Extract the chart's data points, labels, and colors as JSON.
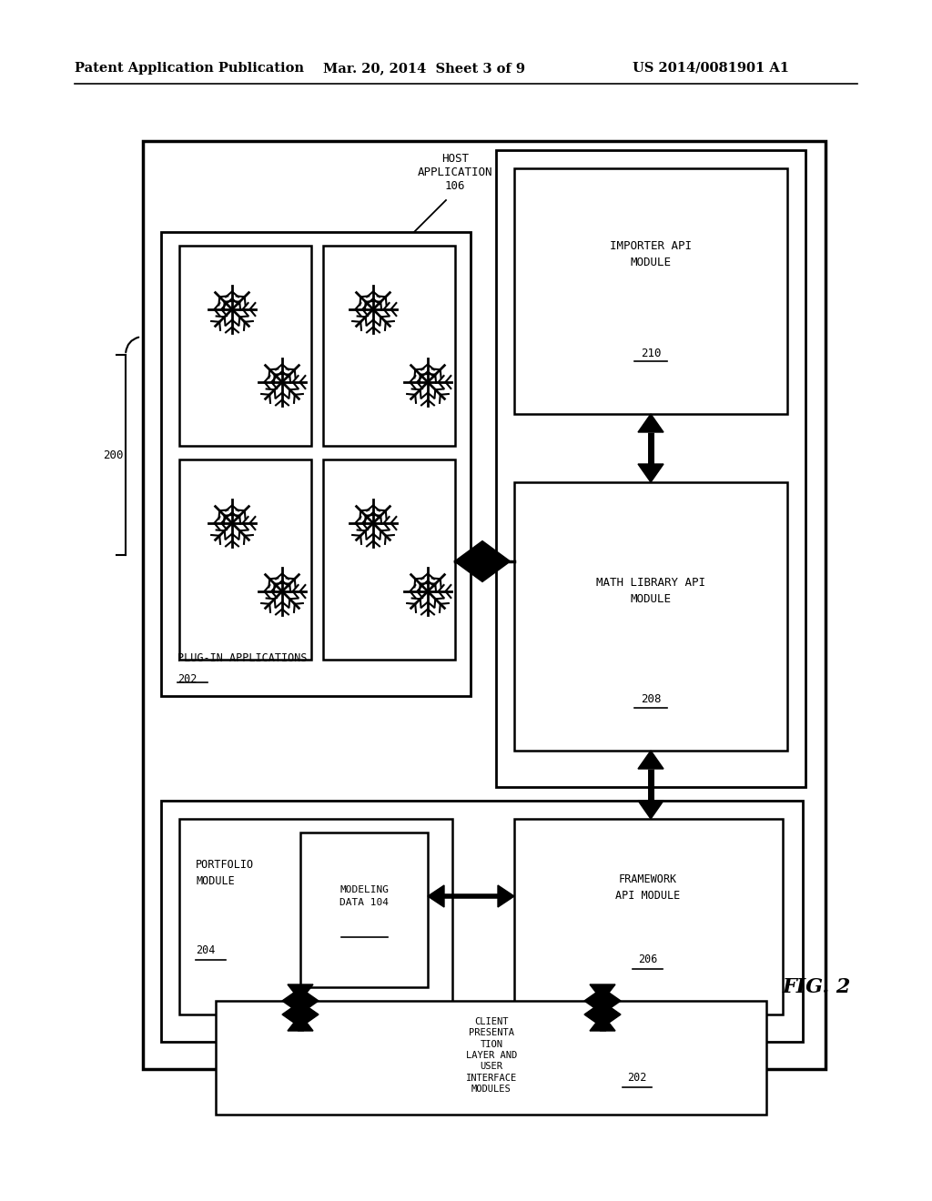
{
  "bg_color": "#ffffff",
  "header_left": "Patent Application Publication",
  "header_mid": "Mar. 20, 2014  Sheet 3 of 9",
  "header_right": "US 2014/0081901 A1",
  "fig_label": "FIG. 2"
}
